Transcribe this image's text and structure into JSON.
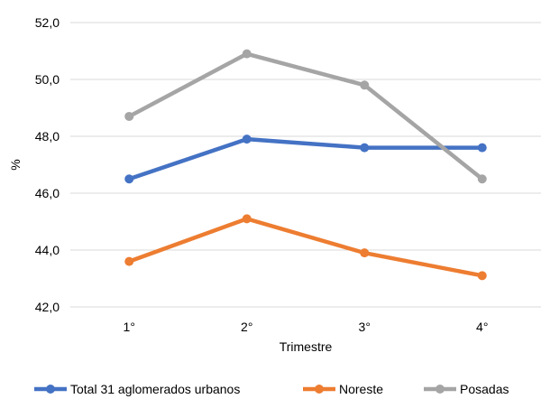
{
  "chart_data": {
    "type": "line",
    "title": "",
    "xlabel": "Trimestre",
    "ylabel": "%",
    "categories": [
      "1°",
      "2°",
      "3°",
      "4°"
    ],
    "ylim": [
      42.0,
      52.0
    ],
    "yticks": [
      "42,0",
      "44,0",
      "46,0",
      "48,0",
      "50,0",
      "52,0"
    ],
    "grid": true,
    "legend_position": "bottom",
    "series": [
      {
        "name": "Total 31 aglomerados urbanos",
        "color": "#4472C4",
        "values": [
          46.5,
          47.9,
          47.6,
          47.6
        ]
      },
      {
        "name": "Noreste",
        "color": "#ED7D31",
        "values": [
          43.6,
          45.1,
          43.9,
          43.1
        ]
      },
      {
        "name": "Posadas",
        "color": "#A5A5A5",
        "values": [
          48.7,
          50.9,
          49.8,
          46.5
        ]
      }
    ]
  }
}
